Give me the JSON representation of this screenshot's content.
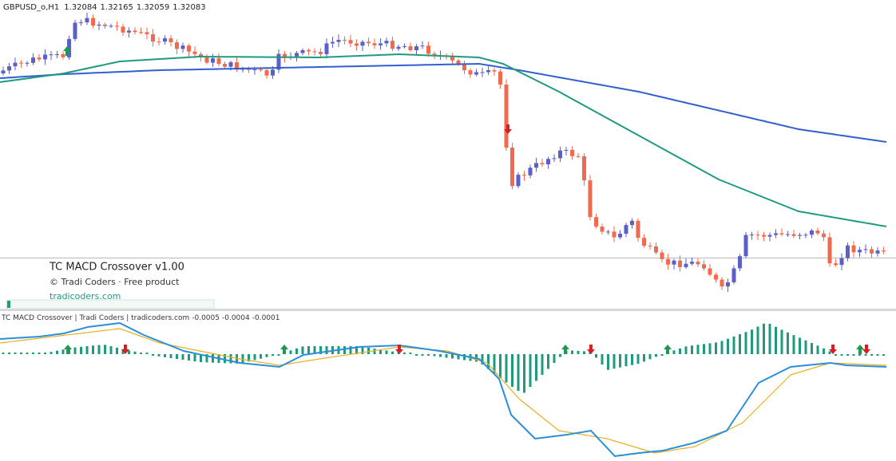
{
  "header": {
    "symbol": "GBPUSD_o,H1",
    "ohlc": [
      1.32084,
      1.32165,
      1.32059,
      1.32083
    ]
  },
  "overlay": {
    "title": "TC MACD Crossover  v1.00",
    "credit": "© Tradi Coders  ·  Free product",
    "link": "tradicoders.com"
  },
  "indicator": {
    "label": "TC MACD Crossover | Tradi Coders | tradicoders.com",
    "readings": [
      -0.0005,
      -0.0004,
      -0.0001
    ]
  }
}
